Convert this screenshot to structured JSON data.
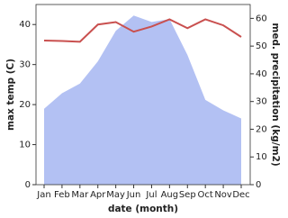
{
  "chart_data": {
    "type": "combo",
    "x_label": "date (month)",
    "y_label": "max temp (C)",
    "y2_label": "med. precipitation (kg/m2)",
    "categories": [
      "Jan",
      "Feb",
      "Mar",
      "Apr",
      "May",
      "Jun",
      "Jul",
      "Aug",
      "Sep",
      "Oct",
      "Nov",
      "Dec"
    ],
    "ylim": [
      0,
      45
    ],
    "yticks": [
      0,
      10,
      20,
      30,
      40
    ],
    "y2lim": [
      0,
      65
    ],
    "y2ticks": [
      0,
      10,
      20,
      30,
      40,
      50,
      60
    ],
    "series": [
      {
        "name": "med. precipitation",
        "type": "area",
        "axis": "y2",
        "color": "#b3c1f3",
        "values": [
          27.4,
          33,
          36.5,
          44.5,
          55.5,
          61,
          58.7,
          59.7,
          46.8,
          30.6,
          26.8,
          23.9
        ]
      },
      {
        "name": "max temp",
        "type": "line",
        "axis": "y",
        "color": "#c9504f",
        "values": [
          36,
          35.9,
          35.7,
          40,
          40.6,
          38.2,
          39.5,
          41.3,
          39.1,
          41.3,
          39.8,
          36.9
        ]
      }
    ]
  }
}
